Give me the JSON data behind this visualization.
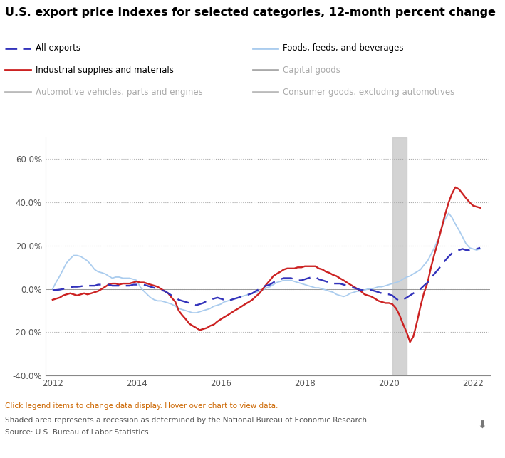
{
  "title": "U.S. export price indexes for selected categories, 12-month percent change",
  "ylim": [
    -40,
    70
  ],
  "yticks": [
    -40,
    -20,
    0,
    20,
    40,
    60
  ],
  "ytick_labels": [
    "-40.0%",
    "-20.0%",
    "0.0%",
    "20.0%",
    "40.0%",
    "60.0%"
  ],
  "xlim_start": 2011.83,
  "xlim_end": 2022.4,
  "recession_start": 2020.08,
  "recession_end": 2020.42,
  "footnote1": "Click legend items to change data display. Hover over chart to view data.",
  "footnote2": "Shaded area represents a recession as determined by the National Bureau of Economic Research.",
  "footnote3": "Source: U.S. Bureau of Labor Statistics.",
  "all_exports_color": "#3333bb",
  "industrial_color": "#cc2222",
  "foods_color": "#aaccee",
  "capital_color": "#aaaaaa",
  "auto_color": "#bbbbbb",
  "consumer_color": "#bbbbbb",
  "all_exports": {
    "x": [
      2012.0,
      2012.08,
      2012.17,
      2012.25,
      2012.33,
      2012.42,
      2012.5,
      2012.58,
      2012.67,
      2012.75,
      2012.83,
      2012.92,
      2013.0,
      2013.08,
      2013.17,
      2013.25,
      2013.33,
      2013.42,
      2013.5,
      2013.58,
      2013.67,
      2013.75,
      2013.83,
      2013.92,
      2014.0,
      2014.08,
      2014.17,
      2014.25,
      2014.33,
      2014.42,
      2014.5,
      2014.58,
      2014.67,
      2014.75,
      2014.83,
      2014.92,
      2015.0,
      2015.08,
      2015.17,
      2015.25,
      2015.33,
      2015.42,
      2015.5,
      2015.58,
      2015.67,
      2015.75,
      2015.83,
      2015.92,
      2016.0,
      2016.08,
      2016.17,
      2016.25,
      2016.33,
      2016.42,
      2016.5,
      2016.58,
      2016.67,
      2016.75,
      2016.83,
      2016.92,
      2017.0,
      2017.08,
      2017.17,
      2017.25,
      2017.33,
      2017.42,
      2017.5,
      2017.58,
      2017.67,
      2017.75,
      2017.83,
      2017.92,
      2018.0,
      2018.08,
      2018.17,
      2018.25,
      2018.33,
      2018.42,
      2018.5,
      2018.58,
      2018.67,
      2018.75,
      2018.83,
      2018.92,
      2019.0,
      2019.08,
      2019.17,
      2019.25,
      2019.33,
      2019.42,
      2019.5,
      2019.58,
      2019.67,
      2019.75,
      2019.83,
      2019.92,
      2020.0,
      2020.08,
      2020.17,
      2020.25,
      2020.33,
      2020.42,
      2020.5,
      2020.58,
      2020.67,
      2020.75,
      2020.83,
      2020.92,
      2021.0,
      2021.08,
      2021.17,
      2021.25,
      2021.33,
      2021.42,
      2021.5,
      2021.58,
      2021.67,
      2021.75,
      2021.83,
      2021.92,
      2022.0,
      2022.08,
      2022.17
    ],
    "y": [
      -0.5,
      -0.5,
      -0.3,
      0.0,
      0.5,
      0.8,
      1.0,
      1.0,
      1.2,
      1.5,
      1.5,
      1.5,
      1.5,
      2.0,
      2.0,
      2.0,
      2.0,
      1.5,
      1.5,
      1.5,
      1.5,
      1.5,
      1.5,
      2.0,
      2.0,
      2.5,
      2.0,
      1.5,
      1.0,
      0.5,
      0.0,
      -0.5,
      -1.0,
      -2.0,
      -3.0,
      -4.0,
      -5.0,
      -5.5,
      -6.0,
      -6.5,
      -7.0,
      -7.5,
      -7.0,
      -6.5,
      -5.5,
      -5.0,
      -4.5,
      -4.0,
      -4.5,
      -5.0,
      -5.5,
      -5.0,
      -4.5,
      -4.0,
      -3.5,
      -3.0,
      -2.5,
      -2.0,
      -1.0,
      0.0,
      1.0,
      1.5,
      2.0,
      3.0,
      4.0,
      4.5,
      5.0,
      5.0,
      5.0,
      4.5,
      4.0,
      4.0,
      4.5,
      5.0,
      5.5,
      5.5,
      4.5,
      4.0,
      3.5,
      3.0,
      2.5,
      2.5,
      2.5,
      2.0,
      1.5,
      1.0,
      0.5,
      0.0,
      -0.5,
      -0.5,
      -0.5,
      -0.5,
      -1.0,
      -1.5,
      -2.0,
      -2.5,
      -2.5,
      -3.0,
      -4.5,
      -5.5,
      -5.0,
      -4.0,
      -3.0,
      -2.0,
      -1.0,
      0.0,
      1.5,
      3.0,
      5.0,
      7.0,
      9.0,
      11.0,
      13.0,
      15.0,
      16.5,
      17.5,
      18.0,
      18.5,
      18.0,
      18.0,
      18.5,
      18.5,
      19.0
    ]
  },
  "industrial": {
    "x": [
      2012.0,
      2012.08,
      2012.17,
      2012.25,
      2012.33,
      2012.42,
      2012.5,
      2012.58,
      2012.67,
      2012.75,
      2012.83,
      2012.92,
      2013.0,
      2013.08,
      2013.17,
      2013.25,
      2013.33,
      2013.42,
      2013.5,
      2013.58,
      2013.67,
      2013.75,
      2013.83,
      2013.92,
      2014.0,
      2014.08,
      2014.17,
      2014.25,
      2014.33,
      2014.42,
      2014.5,
      2014.58,
      2014.67,
      2014.75,
      2014.83,
      2014.92,
      2015.0,
      2015.08,
      2015.17,
      2015.25,
      2015.33,
      2015.42,
      2015.5,
      2015.58,
      2015.67,
      2015.75,
      2015.83,
      2015.92,
      2016.0,
      2016.08,
      2016.17,
      2016.25,
      2016.33,
      2016.42,
      2016.5,
      2016.58,
      2016.67,
      2016.75,
      2016.83,
      2016.92,
      2017.0,
      2017.08,
      2017.17,
      2017.25,
      2017.33,
      2017.42,
      2017.5,
      2017.58,
      2017.67,
      2017.75,
      2017.83,
      2017.92,
      2018.0,
      2018.08,
      2018.17,
      2018.25,
      2018.33,
      2018.42,
      2018.5,
      2018.58,
      2018.67,
      2018.75,
      2018.83,
      2018.92,
      2019.0,
      2019.08,
      2019.17,
      2019.25,
      2019.33,
      2019.42,
      2019.5,
      2019.58,
      2019.67,
      2019.75,
      2019.83,
      2019.92,
      2020.0,
      2020.08,
      2020.17,
      2020.25,
      2020.33,
      2020.42,
      2020.5,
      2020.58,
      2020.67,
      2020.75,
      2020.83,
      2020.92,
      2021.0,
      2021.08,
      2021.17,
      2021.25,
      2021.33,
      2021.42,
      2021.5,
      2021.58,
      2021.67,
      2021.75,
      2021.83,
      2021.92,
      2022.0,
      2022.08,
      2022.17
    ],
    "y": [
      -5.0,
      -4.5,
      -4.0,
      -3.0,
      -2.5,
      -2.0,
      -2.5,
      -3.0,
      -2.5,
      -2.0,
      -2.5,
      -2.0,
      -1.5,
      -1.0,
      0.0,
      1.0,
      2.0,
      2.5,
      2.5,
      2.0,
      2.5,
      2.5,
      2.5,
      3.0,
      3.5,
      3.0,
      3.0,
      2.5,
      2.0,
      1.5,
      1.0,
      0.0,
      -1.0,
      -2.0,
      -4.0,
      -6.0,
      -10.0,
      -12.0,
      -14.0,
      -16.0,
      -17.0,
      -18.0,
      -19.0,
      -18.5,
      -18.0,
      -17.0,
      -16.5,
      -15.0,
      -14.0,
      -13.0,
      -12.0,
      -11.0,
      -10.0,
      -9.0,
      -8.0,
      -7.0,
      -6.0,
      -5.0,
      -3.5,
      -2.0,
      0.0,
      2.0,
      4.0,
      6.0,
      7.0,
      8.0,
      9.0,
      9.5,
      9.5,
      9.5,
      10.0,
      10.0,
      10.5,
      10.5,
      10.5,
      10.5,
      9.5,
      9.0,
      8.0,
      7.5,
      6.5,
      6.0,
      5.0,
      4.0,
      3.0,
      2.0,
      1.0,
      0.0,
      -1.0,
      -2.5,
      -3.0,
      -3.5,
      -4.5,
      -5.5,
      -6.0,
      -6.5,
      -6.5,
      -7.0,
      -9.0,
      -12.0,
      -16.0,
      -20.0,
      -24.5,
      -22.0,
      -15.0,
      -8.0,
      -2.0,
      3.0,
      10.0,
      16.0,
      22.0,
      28.0,
      34.0,
      40.0,
      44.0,
      47.0,
      46.0,
      44.0,
      42.0,
      40.0,
      38.5,
      38.0,
      37.5
    ]
  },
  "foods": {
    "x": [
      2012.0,
      2012.08,
      2012.17,
      2012.25,
      2012.33,
      2012.42,
      2012.5,
      2012.58,
      2012.67,
      2012.75,
      2012.83,
      2012.92,
      2013.0,
      2013.08,
      2013.17,
      2013.25,
      2013.33,
      2013.42,
      2013.5,
      2013.58,
      2013.67,
      2013.75,
      2013.83,
      2013.92,
      2014.0,
      2014.08,
      2014.17,
      2014.25,
      2014.33,
      2014.42,
      2014.5,
      2014.58,
      2014.67,
      2014.75,
      2014.83,
      2014.92,
      2015.0,
      2015.08,
      2015.17,
      2015.25,
      2015.33,
      2015.42,
      2015.5,
      2015.58,
      2015.67,
      2015.75,
      2015.83,
      2015.92,
      2016.0,
      2016.08,
      2016.17,
      2016.25,
      2016.33,
      2016.42,
      2016.5,
      2016.58,
      2016.67,
      2016.75,
      2016.83,
      2016.92,
      2017.0,
      2017.08,
      2017.17,
      2017.25,
      2017.33,
      2017.42,
      2017.5,
      2017.58,
      2017.67,
      2017.75,
      2017.83,
      2017.92,
      2018.0,
      2018.08,
      2018.17,
      2018.25,
      2018.33,
      2018.42,
      2018.5,
      2018.58,
      2018.67,
      2018.75,
      2018.83,
      2018.92,
      2019.0,
      2019.08,
      2019.17,
      2019.25,
      2019.33,
      2019.42,
      2019.5,
      2019.58,
      2019.67,
      2019.75,
      2019.83,
      2019.92,
      2020.0,
      2020.08,
      2020.17,
      2020.25,
      2020.33,
      2020.42,
      2020.5,
      2020.58,
      2020.67,
      2020.75,
      2020.83,
      2020.92,
      2021.0,
      2021.08,
      2021.17,
      2021.25,
      2021.33,
      2021.42,
      2021.5,
      2021.58,
      2021.67,
      2021.75,
      2021.83,
      2021.92,
      2022.0,
      2022.08,
      2022.17
    ],
    "y": [
      0.0,
      3.0,
      6.0,
      9.0,
      12.0,
      14.0,
      15.5,
      15.5,
      15.0,
      14.0,
      13.0,
      11.0,
      9.0,
      8.0,
      7.5,
      7.0,
      6.0,
      5.0,
      5.5,
      5.5,
      5.0,
      5.0,
      5.0,
      4.5,
      4.0,
      1.0,
      -1.0,
      -2.5,
      -4.0,
      -5.0,
      -5.5,
      -5.5,
      -6.0,
      -6.5,
      -7.0,
      -8.0,
      -9.0,
      -9.5,
      -10.0,
      -10.5,
      -11.0,
      -11.0,
      -10.5,
      -10.0,
      -9.5,
      -9.0,
      -8.0,
      -7.5,
      -7.0,
      -6.0,
      -5.5,
      -5.0,
      -4.5,
      -4.0,
      -3.5,
      -3.0,
      -2.5,
      -2.0,
      -1.5,
      -1.0,
      -0.5,
      0.5,
      1.0,
      2.0,
      3.0,
      3.5,
      4.0,
      4.0,
      4.0,
      3.5,
      3.0,
      2.5,
      2.0,
      1.5,
      1.0,
      0.5,
      0.5,
      0.0,
      -0.5,
      -1.0,
      -1.5,
      -2.5,
      -3.0,
      -3.5,
      -3.0,
      -2.0,
      -1.5,
      -1.0,
      -1.0,
      -0.5,
      0.0,
      0.0,
      0.5,
      1.0,
      1.0,
      1.5,
      2.0,
      2.5,
      3.0,
      3.5,
      4.5,
      5.5,
      6.0,
      7.0,
      8.0,
      9.0,
      11.0,
      13.0,
      16.0,
      19.0,
      23.0,
      28.0,
      32.0,
      35.0,
      33.0,
      30.0,
      27.0,
      24.0,
      21.0,
      19.0,
      18.5,
      18.0,
      18.5
    ]
  }
}
